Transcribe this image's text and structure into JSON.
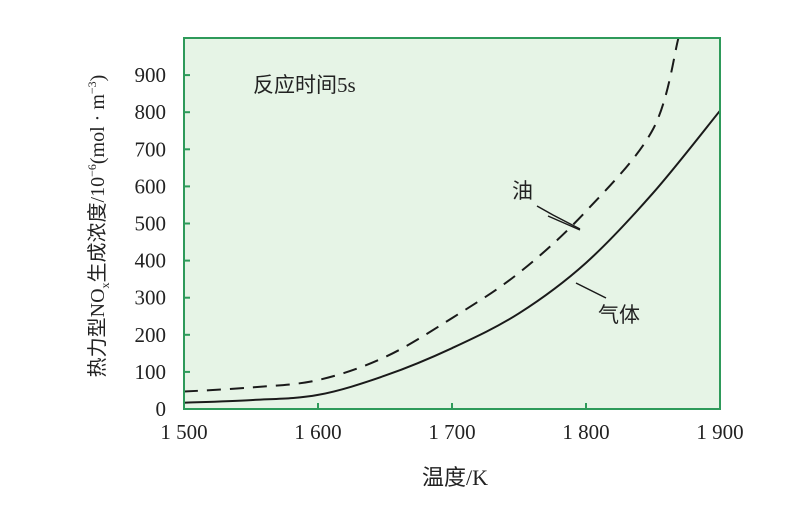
{
  "chart_data": {
    "type": "line",
    "title": "",
    "annotation": "反应时间5s",
    "xlabel": "温度/K",
    "ylabel": {
      "prefix": "热力型NO",
      "sub": "x",
      "mid": "生成浓度/10",
      "sup": "−6",
      "unit": "(mol · m",
      "unit_sup": "−3",
      "close": ")"
    },
    "xlim": [
      1500,
      1900
    ],
    "ylim": [
      0,
      1000
    ],
    "x_ticks": [
      1500,
      1600,
      1700,
      1800,
      1900
    ],
    "x_tick_labels": [
      "1 500",
      "1 600",
      "1 700",
      "1 800",
      "1 900"
    ],
    "y_ticks": [
      0,
      100,
      200,
      300,
      400,
      500,
      600,
      700,
      800,
      900
    ],
    "y_tick_labels": [
      "0",
      "100",
      "200",
      "300",
      "400",
      "500",
      "600",
      "700",
      "800",
      "900"
    ],
    "grid": false,
    "background_color": "#e6f4e6",
    "frame_color": "#2e9a5a",
    "series": [
      {
        "name": "油",
        "style": "dashed",
        "color": "#1a1a1a",
        "x": [
          1500,
          1550,
          1600,
          1650,
          1700,
          1750,
          1800,
          1850,
          1869
        ],
        "y": [
          47,
          58,
          78,
          140,
          245,
          367,
          533,
          754,
          1000
        ]
      },
      {
        "name": "气体",
        "style": "solid",
        "color": "#1a1a1a",
        "x": [
          1500,
          1550,
          1600,
          1650,
          1700,
          1750,
          1800,
          1850,
          1900
        ],
        "y": [
          17,
          24,
          38,
          90,
          164,
          258,
          394,
          582,
          804
        ]
      }
    ]
  }
}
